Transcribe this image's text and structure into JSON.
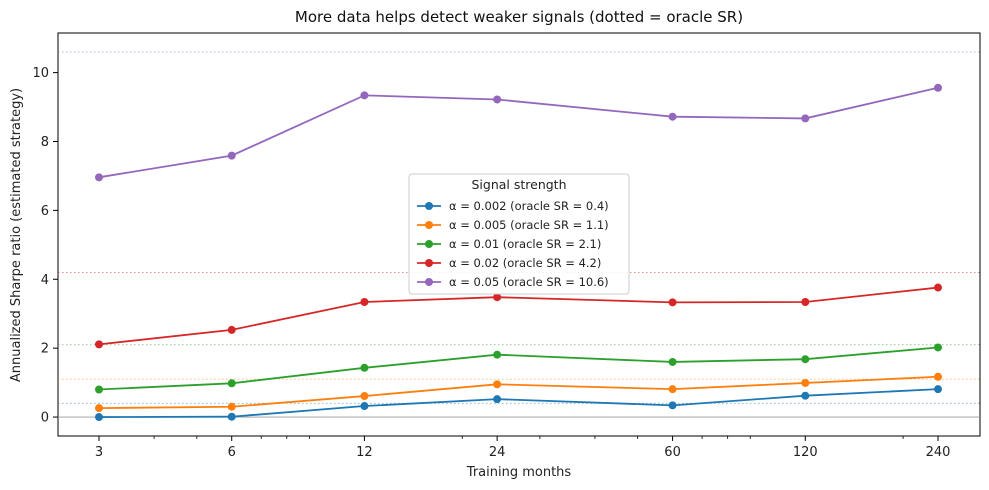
{
  "chart_data": {
    "type": "line",
    "title": "More data helps detect weaker signals (dotted = oracle SR)",
    "xlabel": "Training months",
    "ylabel": "Annualized Sharpe ratio (estimated strategy)",
    "x_scale": "log",
    "x": [
      3,
      6,
      12,
      24,
      60,
      120,
      240
    ],
    "x_tick_labels": [
      "3",
      "6",
      "12",
      "24",
      "60",
      "120",
      "240"
    ],
    "y_ticks": [
      0,
      2,
      4,
      6,
      8,
      10
    ],
    "y_tick_labels": [
      "0",
      "2",
      "4",
      "6",
      "8",
      "10"
    ],
    "ylim": [
      -0.55,
      11.15
    ],
    "legend_title": "Signal strength",
    "legend_position": "center",
    "grid": false,
    "zero_line": true,
    "series": [
      {
        "name": "α = 0.002 (oracle SR = 0.4)",
        "color": "#1f77b4",
        "oracle": 0.4,
        "values": [
          0.0,
          0.01,
          0.32,
          0.52,
          0.34,
          0.62,
          0.81
        ]
      },
      {
        "name": "α = 0.005 (oracle SR = 1.1)",
        "color": "#ff7f0e",
        "oracle": 1.1,
        "values": [
          0.26,
          0.3,
          0.61,
          0.95,
          0.81,
          0.99,
          1.17
        ]
      },
      {
        "name": "α = 0.01 (oracle SR = 2.1)",
        "color": "#2ca02c",
        "oracle": 2.1,
        "values": [
          0.8,
          0.98,
          1.43,
          1.81,
          1.6,
          1.68,
          2.02
        ]
      },
      {
        "name": "α = 0.02 (oracle SR = 4.2)",
        "color": "#d62728",
        "oracle": 4.2,
        "values": [
          2.11,
          2.53,
          3.34,
          3.48,
          3.33,
          3.34,
          3.76
        ]
      },
      {
        "name": "α = 0.05 (oracle SR = 10.6)",
        "color": "#9467bd",
        "oracle": 10.6,
        "values": [
          6.96,
          7.59,
          9.34,
          9.22,
          8.72,
          8.67,
          9.56
        ]
      }
    ]
  }
}
